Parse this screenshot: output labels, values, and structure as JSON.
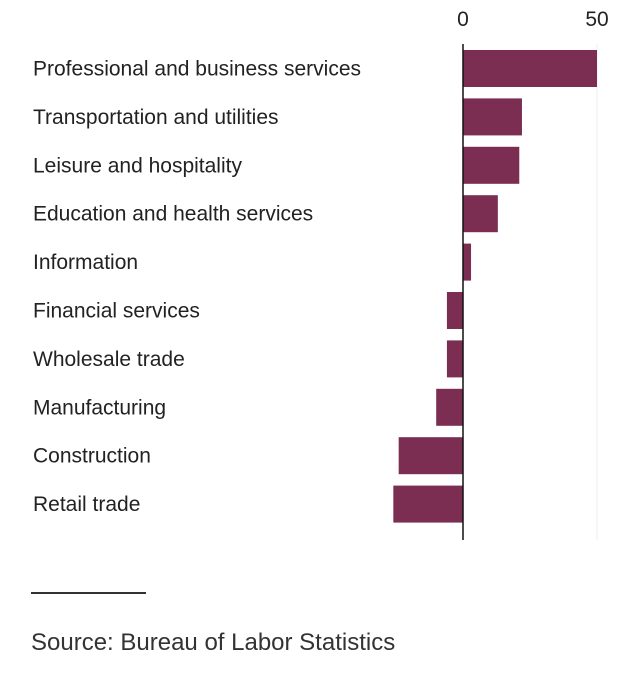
{
  "chart_data": {
    "type": "bar",
    "orientation": "horizontal",
    "categories": [
      "Professional and business services",
      "Transportation and utilities",
      "Leisure and hospitality",
      "Education and health services",
      "Information",
      "Financial services",
      "Wholesale trade",
      "Manufacturing",
      "Construction",
      "Retail trade"
    ],
    "values": [
      50,
      22,
      21,
      13,
      3,
      -6,
      -6,
      -10,
      -24,
      -26
    ],
    "xlim": [
      -27,
      53
    ],
    "ticks": [
      0,
      50
    ],
    "tick_labels": [
      "0",
      "50"
    ],
    "bar_color": "#7b2d52",
    "grid": false,
    "title": "",
    "xlabel": "",
    "ylabel": ""
  },
  "footer": {
    "source": "Source: Bureau of Labor Statistics"
  }
}
